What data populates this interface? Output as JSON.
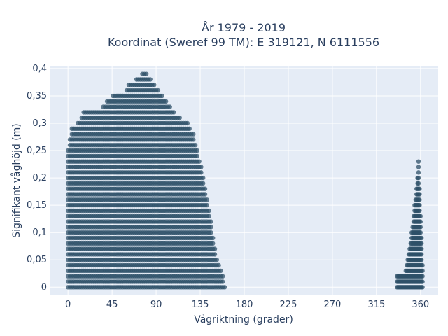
{
  "chart_data": {
    "type": "scatter",
    "title_line1": "År 1979 - 2019",
    "title_line2": "Koordinat (Sweref 99 TM): E 319121, N 6111556",
    "xlabel": "Vågriktning (grader)",
    "ylabel": "Signifikant våghöjd (m)",
    "xlim": [
      -18,
      378
    ],
    "ylim": [
      -0.015,
      0.405
    ],
    "x_ticks": [
      0,
      45,
      90,
      135,
      180,
      225,
      270,
      315,
      360
    ],
    "x_tick_labels": [
      "0",
      "45",
      "90",
      "135",
      "180",
      "225",
      "270",
      "315",
      "360"
    ],
    "y_ticks": [
      0,
      0.05,
      0.1,
      0.15,
      0.2,
      0.25,
      0.3,
      0.35,
      0.4
    ],
    "y_tick_labels": [
      "0",
      "0,05",
      "0,1",
      "0,15",
      "0,2",
      "0,25",
      "0,3",
      "0,35",
      "0,4"
    ],
    "grid": true,
    "marker_color": "#2e5068",
    "plot_background": "#e5ecf6",
    "envelope": [
      {
        "x": 0,
        "ymax": 0.25
      },
      {
        "x": 3,
        "ymax": 0.29
      },
      {
        "x": 10,
        "ymax": 0.3
      },
      {
        "x": 15,
        "ymax": 0.32
      },
      {
        "x": 25,
        "ymax": 0.32
      },
      {
        "x": 35,
        "ymax": 0.33
      },
      {
        "x": 45,
        "ymax": 0.35
      },
      {
        "x": 55,
        "ymax": 0.35
      },
      {
        "x": 62,
        "ymax": 0.37
      },
      {
        "x": 70,
        "ymax": 0.38
      },
      {
        "x": 76,
        "ymax": 0.39
      },
      {
        "x": 80,
        "ymax": 0.39
      },
      {
        "x": 85,
        "ymax": 0.38
      },
      {
        "x": 92,
        "ymax": 0.36
      },
      {
        "x": 100,
        "ymax": 0.34
      },
      {
        "x": 108,
        "ymax": 0.32
      },
      {
        "x": 115,
        "ymax": 0.31
      },
      {
        "x": 122,
        "ymax": 0.3
      },
      {
        "x": 128,
        "ymax": 0.28
      },
      {
        "x": 132,
        "ymax": 0.25
      },
      {
        "x": 137,
        "ymax": 0.22
      },
      {
        "x": 140,
        "ymax": 0.18
      },
      {
        "x": 143,
        "ymax": 0.15
      },
      {
        "x": 147,
        "ymax": 0.11
      },
      {
        "x": 150,
        "ymax": 0.07
      },
      {
        "x": 154,
        "ymax": 0.04
      },
      {
        "x": 158,
        "ymax": 0.02
      },
      {
        "x": 160,
        "ymax": 0.0
      }
    ],
    "cluster_near_360": {
      "x_range": [
        336,
        362
      ],
      "ymax": 0.23,
      "peak_x": 358
    },
    "y_resolution": 0.01,
    "x_resolution": 1
  }
}
